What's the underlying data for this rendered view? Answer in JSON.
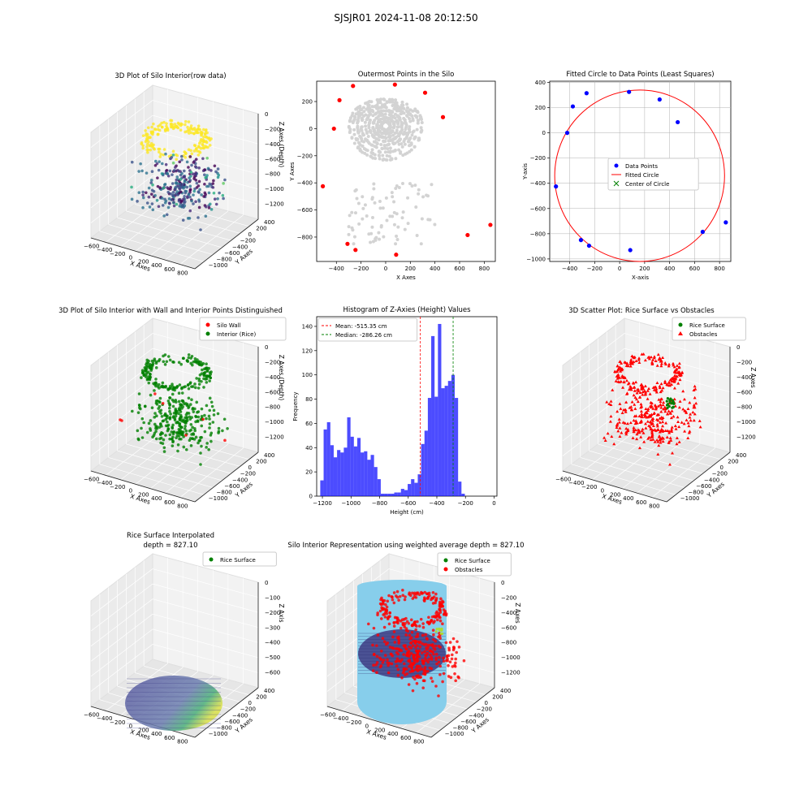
{
  "figure": {
    "suptitle": "SJSJR01 2024-11-08 20:12:50"
  },
  "chart_data": [
    {
      "type": "scatter3d",
      "title": "3D Plot of Silo Interior(row data)",
      "xlabel": "X Axes",
      "ylabel": "Y Axes",
      "zlabel": "Z Axes (Depth)",
      "xticks": [
        "−600",
        "−400",
        "−200",
        "0",
        "200",
        "400",
        "600",
        "800"
      ],
      "yticks": [
        "400",
        "200",
        "0",
        "−200",
        "−400",
        "−600",
        "−800",
        "−1000"
      ],
      "zticks": [
        "0",
        "−200",
        "−400",
        "−600",
        "−800",
        "−1000",
        "−1200"
      ],
      "colormap": "viridis"
    },
    {
      "type": "scatter",
      "title": "Outermost Points in the Silo",
      "xlabel": "X Axes",
      "ylabel": "Y Axes",
      "xticks": [
        "−400",
        "−200",
        "0",
        "200",
        "400",
        "600",
        "800"
      ],
      "yticks": [
        "200",
        "0",
        "−200",
        "−400",
        "−600",
        "−800"
      ],
      "xlim": [
        -560,
        890
      ],
      "ylim": [
        -980,
        350
      ],
      "interior_color": "#d3d3d3",
      "outer_color": "#ff0000",
      "outer_points": [
        [
          -510,
          -425
        ],
        [
          -420,
          0
        ],
        [
          -375,
          210
        ],
        [
          -265,
          315
        ],
        [
          -245,
          -895
        ],
        [
          -310,
          -850
        ],
        [
          75,
          325
        ],
        [
          320,
          265
        ],
        [
          465,
          85
        ],
        [
          665,
          -785
        ],
        [
          850,
          -710
        ],
        [
          85,
          -930
        ]
      ]
    },
    {
      "type": "scatter",
      "title": "Fitted Circle to Data Points (Least Squares)",
      "xlabel": "X-axis",
      "ylabel": "Y-axis",
      "xticks": [
        "−400",
        "−200",
        "0",
        "200",
        "400",
        "600",
        "800"
      ],
      "yticks": [
        "400",
        "200",
        "0",
        "−200",
        "−400",
        "−600",
        "−800",
        "−1000"
      ],
      "xlim": [
        -560,
        890
      ],
      "ylim": [
        -1020,
        410
      ],
      "legend": [
        "Data Points",
        "Fitted Circle",
        "Center of Circle"
      ],
      "points": [
        [
          -510,
          -425
        ],
        [
          -420,
          0
        ],
        [
          -375,
          210
        ],
        [
          -265,
          315
        ],
        [
          -245,
          -895
        ],
        [
          -310,
          -850
        ],
        [
          75,
          325
        ],
        [
          320,
          265
        ],
        [
          465,
          85
        ],
        [
          665,
          -785
        ],
        [
          850,
          -710
        ],
        [
          85,
          -930
        ]
      ],
      "circle": {
        "center": [
          160,
          -340
        ],
        "radius": 680
      },
      "colors": {
        "points": "#0000ff",
        "circle": "#ff0000",
        "center": "#008000"
      }
    },
    {
      "type": "scatter3d",
      "title": "3D Plot of Silo Interior with Wall and Interior Points Distinguished",
      "xlabel": "X Axes",
      "ylabel": "Y Axes",
      "zlabel": "Z Axes (Depth)",
      "xticks": [
        "−600",
        "−400",
        "−200",
        "0",
        "200",
        "400",
        "600",
        "800"
      ],
      "yticks": [
        "400",
        "200",
        "0",
        "−200",
        "−400",
        "−600",
        "−800",
        "−1000"
      ],
      "zticks": [
        "0",
        "−200",
        "−400",
        "−600",
        "−800",
        "−1000",
        "−1200"
      ],
      "legend": [
        "Silo Wall",
        "Interior (Rice)"
      ],
      "colors": {
        "wall": "#ff0000",
        "interior": "#008000"
      }
    },
    {
      "type": "histogram",
      "title": "Histogram of Z-Axies (Height) Values",
      "xlabel": "Height (cm)",
      "ylabel": "Frequency",
      "xticks": [
        "−1200",
        "−1000",
        "−800",
        "−600",
        "−400",
        "−200",
        "0"
      ],
      "yticks": [
        "0",
        "20",
        "40",
        "60",
        "80",
        "100",
        "120",
        "140"
      ],
      "xlim": [
        -1240,
        20
      ],
      "ylim": [
        0,
        148
      ],
      "bin_start": -1215,
      "bin_width": 23.5,
      "values": [
        13,
        55,
        61,
        42,
        32,
        38,
        36,
        40,
        65,
        49,
        41,
        48,
        36,
        37,
        30,
        34,
        24,
        14,
        2,
        2,
        2,
        2,
        3,
        3,
        6,
        5,
        10,
        14,
        11,
        18,
        43,
        54,
        81,
        132,
        82,
        142,
        89,
        91,
        95,
        100,
        81,
        12,
        2
      ],
      "bar_color": "#0000ff",
      "legend": [
        "Mean: -515.35 cm",
        "Median: -286.26 cm"
      ],
      "mean": -515.35,
      "median": -286.26,
      "colors": {
        "mean": "#ff0000",
        "median": "#008000"
      }
    },
    {
      "type": "scatter3d",
      "title": "3D Scatter Plot: Rice Surface vs Obstacles",
      "xlabel": "X Axes",
      "ylabel": "Y Axes",
      "zlabel": "Z Axes",
      "xticks": [
        "−600",
        "−400",
        "−200",
        "0",
        "200",
        "400",
        "600",
        "800"
      ],
      "yticks": [
        "400",
        "200",
        "0",
        "−200",
        "−400",
        "−600",
        "−800",
        "−1000"
      ],
      "zticks": [
        "0",
        "−200",
        "−400",
        "−600",
        "−800",
        "−1000",
        "−1200"
      ],
      "legend": [
        "Rice Surface",
        "Obstacles"
      ],
      "colors": {
        "rice": "#008000",
        "obstacles": "#ff0000"
      }
    },
    {
      "type": "surface3d",
      "title": "Rice Surface Interpolated",
      "subtitle": "depth = 827.10",
      "xlabel": "X Axes",
      "ylabel": "Y Axes",
      "zlabel": "Z Axis",
      "xticks": [
        "−600",
        "−400",
        "−200",
        "0",
        "200",
        "400",
        "600",
        "800"
      ],
      "yticks": [
        "400",
        "200",
        "0",
        "−200",
        "−400",
        "−600",
        "−800",
        "−1000"
      ],
      "zticks": [
        "0",
        "−100",
        "−200",
        "−300",
        "−400",
        "−500",
        "−600"
      ],
      "legend": [
        "Rice Surface"
      ]
    },
    {
      "type": "surface3d",
      "title": "Silo Interior Representation using weighted average depth = 827.10",
      "xlabel": "X Axes",
      "ylabel": "Y Axes",
      "zlabel": "Z Axes",
      "xticks": [
        "−600",
        "−400",
        "−200",
        "0",
        "200",
        "400",
        "600",
        "800"
      ],
      "yticks": [
        "400",
        "200",
        "0",
        "−200",
        "−400",
        "−600",
        "−800",
        "−1000"
      ],
      "zticks": [
        "0",
        "−200",
        "−400",
        "−600",
        "−800",
        "−1000",
        "−1200"
      ],
      "legend": [
        "Rice Surface",
        "Obstacles"
      ],
      "colors": {
        "cylinder": "#87ceeb",
        "surface": "#44448a",
        "obstacles": "#ff0000",
        "rice": "#008000"
      }
    }
  ]
}
